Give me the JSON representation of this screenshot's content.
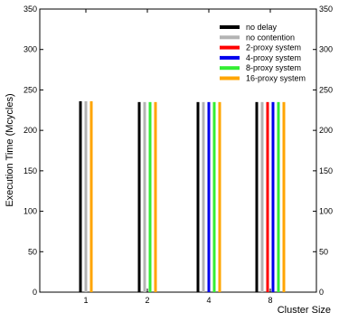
{
  "chart_data": {
    "type": "bar",
    "xlabel": "Cluster Size",
    "ylabel": "Execution Time (Mcycles)",
    "ylim": [
      0,
      350
    ],
    "yticks": [
      "0",
      "50",
      "100",
      "150",
      "200",
      "250",
      "300",
      "350"
    ],
    "categories": [
      "1",
      "2",
      "4",
      "8"
    ],
    "legend_position": "top-right",
    "grid": false,
    "series": [
      {
        "name": "no delay",
        "color": "#000000",
        "values": [
          236,
          235,
          235,
          235
        ]
      },
      {
        "name": "no contention",
        "color": "#b3b3b3",
        "values": [
          236,
          235,
          235,
          235
        ]
      },
      {
        "name": "2-proxy system",
        "color": "#ff0000",
        "values": [
          null,
          null,
          null,
          235
        ]
      },
      {
        "name": "4-proxy system",
        "color": "#0000ee",
        "values": [
          null,
          null,
          235,
          235
        ]
      },
      {
        "name": "8-proxy system",
        "color": "#33ee33",
        "values": [
          null,
          235,
          235,
          235
        ]
      },
      {
        "name": "16-proxy system",
        "color": "#ffa500",
        "values": [
          236,
          235,
          235,
          235
        ]
      }
    ]
  }
}
